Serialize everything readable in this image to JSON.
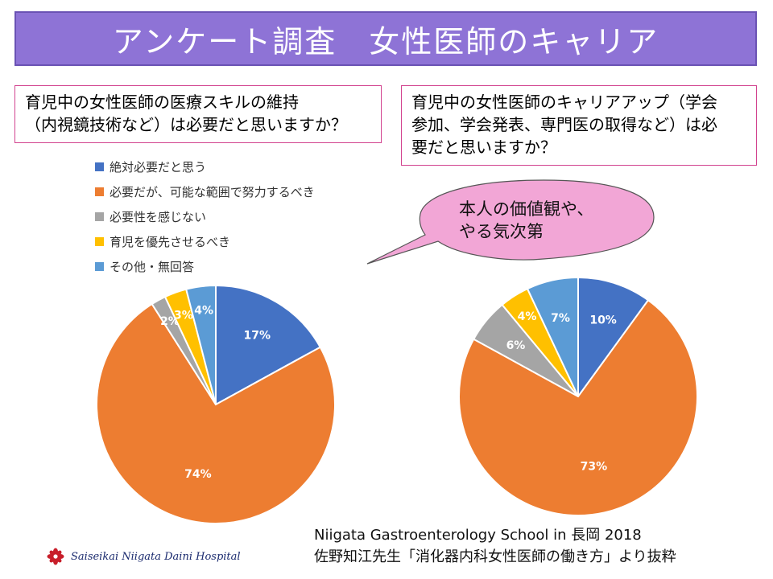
{
  "title": "アンケート調査　女性医師のキャリア",
  "question_left": [
    "育児中の女性医師の医療スキルの維持",
    "（内視鏡技術など）は必要だと思いますか？"
  ],
  "question_right": [
    "育児中の女性医師のキャリアアップ（学会",
    "参加、学会発表、専門医の取得など）は必",
    "要だと思いますか？"
  ],
  "callout": [
    "本人の価値観や、",
    "やる気次第"
  ],
  "legend": [
    {
      "label": "絶対必要だと思う",
      "color": "#4472c4"
    },
    {
      "label": "必要だが、可能な範囲で努力するべき",
      "color": "#ed7d31"
    },
    {
      "label": "必要性を感じない",
      "color": "#a5a5a5"
    },
    {
      "label": "育児を優先させるべき",
      "color": "#ffc000"
    },
    {
      "label": "その他・無回答",
      "color": "#5b9bd5"
    }
  ],
  "chart_data": [
    {
      "type": "pie",
      "title": "育児中の女性医師の医療スキルの維持（内視鏡技術など）は必要だと思いますか？",
      "categories": [
        "絶対必要だと思う",
        "必要だが、可能な範囲で努力するべき",
        "必要性を感じない",
        "育児を優先させるべき",
        "その他・無回答"
      ],
      "values": [
        17,
        74,
        2,
        3,
        4
      ],
      "labels": [
        "17%",
        "74%",
        "2%",
        "3%",
        "4%"
      ],
      "colors": [
        "#4472c4",
        "#ed7d31",
        "#a5a5a5",
        "#ffc000",
        "#5b9bd5"
      ]
    },
    {
      "type": "pie",
      "title": "育児中の女性医師のキャリアアップ（学会参加、学会発表、専門医の取得など）は必要だと思いますか？",
      "categories": [
        "絶対必要だと思う",
        "必要だが、可能な範囲で努力するべき",
        "必要性を感じない",
        "育児を優先させるべき",
        "その他・無回答"
      ],
      "values": [
        10,
        73,
        6,
        4,
        7
      ],
      "labels": [
        "10%",
        "73%",
        "6%",
        "4%",
        "7%"
      ],
      "colors": [
        "#4472c4",
        "#ed7d31",
        "#a5a5a5",
        "#ffc000",
        "#5b9bd5"
      ]
    }
  ],
  "source": [
    "Niigata Gastroenterology School in 長岡 2018",
    "佐野知江先生「消化器内科女性医師の働き方」より抜粋"
  ],
  "hospital": "Saiseikai Niigata Daini Hospital",
  "colors": {
    "title_bg": "#8e73d6",
    "box_border": "#d2438f",
    "callout_fill": "#f2a6d6"
  }
}
